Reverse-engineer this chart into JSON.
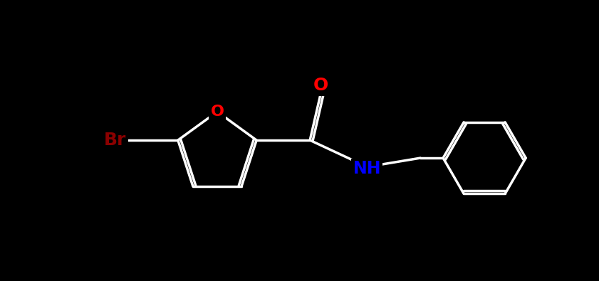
{
  "bg_color": "#000000",
  "bond_color": "#ffffff",
  "bond_width": 2.5,
  "atom_colors": {
    "O": "#ff0000",
    "N": "#0000ff",
    "Br": "#8b0000",
    "C": "#ffffff"
  },
  "font_size_atom": 18,
  "font_size_small": 14,
  "fig_width": 8.41,
  "fig_height": 3.95,
  "dpi": 100
}
